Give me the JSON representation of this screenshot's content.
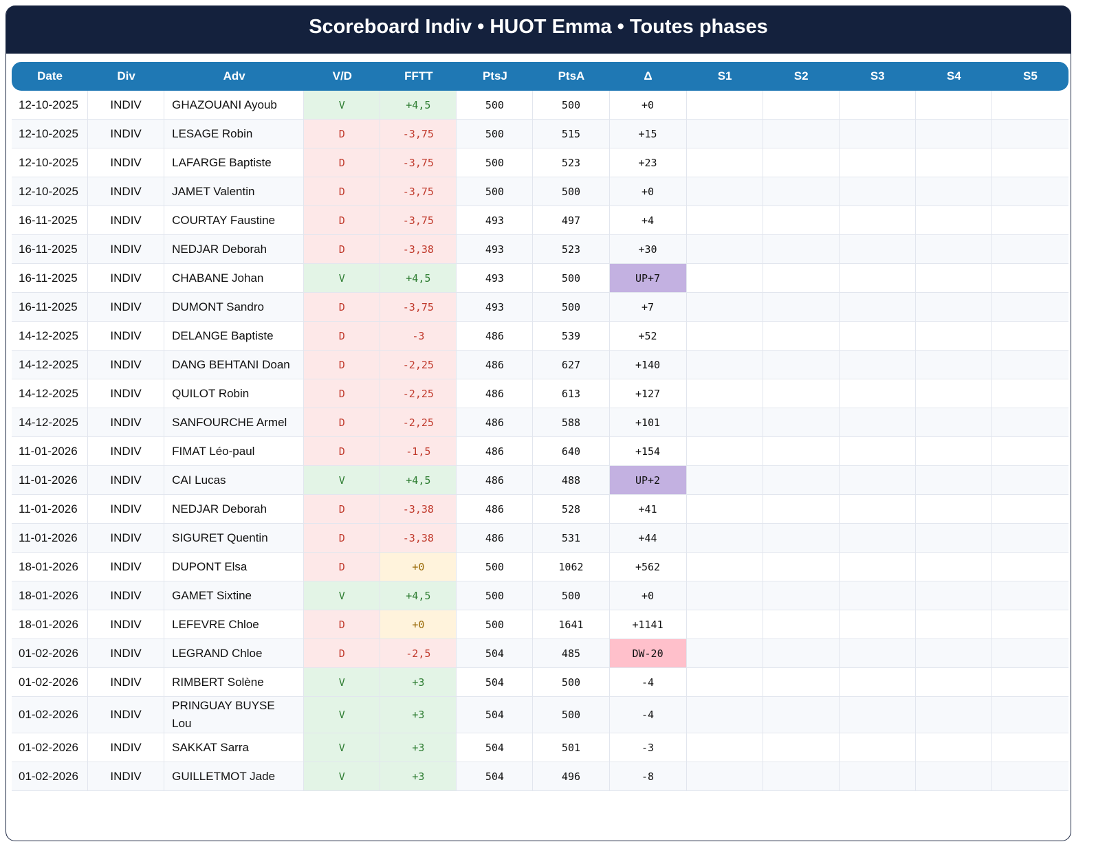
{
  "header": {
    "title": "Scoreboard Indiv • HUOT Emma • Toutes phases"
  },
  "table": {
    "columns": [
      "Date",
      "Div",
      "Adv",
      "V/D",
      "FFTT",
      "PtsJ",
      "PtsA",
      "Δ",
      "S1",
      "S2",
      "S3",
      "S4",
      "S5"
    ],
    "rows": [
      [
        "12-10-2025",
        "INDIV",
        "GHAZOUANI Ayoub",
        "V",
        "+4,5",
        "500",
        "500",
        "+0"
      ],
      [
        "12-10-2025",
        "INDIV",
        "LESAGE Robin",
        "D",
        "-3,75",
        "500",
        "515",
        "+15"
      ],
      [
        "12-10-2025",
        "INDIV",
        "LAFARGE Baptiste",
        "D",
        "-3,75",
        "500",
        "523",
        "+23"
      ],
      [
        "12-10-2025",
        "INDIV",
        "JAMET Valentin",
        "D",
        "-3,75",
        "500",
        "500",
        "+0"
      ],
      [
        "16-11-2025",
        "INDIV",
        "COURTAY Faustine",
        "D",
        "-3,75",
        "493",
        "497",
        "+4"
      ],
      [
        "16-11-2025",
        "INDIV",
        "NEDJAR Deborah",
        "D",
        "-3,38",
        "493",
        "523",
        "+30"
      ],
      [
        "16-11-2025",
        "INDIV",
        "CHABANE Johan",
        "V",
        "+4,5",
        "493",
        "500",
        "UP+7"
      ],
      [
        "16-11-2025",
        "INDIV",
        "DUMONT Sandro",
        "D",
        "-3,75",
        "493",
        "500",
        "+7"
      ],
      [
        "14-12-2025",
        "INDIV",
        "DELANGE Baptiste",
        "D",
        "-3",
        "486",
        "539",
        "+52"
      ],
      [
        "14-12-2025",
        "INDIV",
        "DANG BEHTANI Doan",
        "D",
        "-2,25",
        "486",
        "627",
        "+140"
      ],
      [
        "14-12-2025",
        "INDIV",
        "QUILOT Robin",
        "D",
        "-2,25",
        "486",
        "613",
        "+127"
      ],
      [
        "14-12-2025",
        "INDIV",
        "SANFOURCHE Armel",
        "D",
        "-2,25",
        "486",
        "588",
        "+101"
      ],
      [
        "11-01-2026",
        "INDIV",
        "FIMAT Léo-paul",
        "D",
        "-1,5",
        "486",
        "640",
        "+154"
      ],
      [
        "11-01-2026",
        "INDIV",
        "CAI Lucas",
        "V",
        "+4,5",
        "486",
        "488",
        "UP+2"
      ],
      [
        "11-01-2026",
        "INDIV",
        "NEDJAR Deborah",
        "D",
        "-3,38",
        "486",
        "528",
        "+41"
      ],
      [
        "11-01-2026",
        "INDIV",
        "SIGURET Quentin",
        "D",
        "-3,38",
        "486",
        "531",
        "+44"
      ],
      [
        "18-01-2026",
        "INDIV",
        "DUPONT Elsa",
        "D",
        "+0",
        "500",
        "1062",
        "+562"
      ],
      [
        "18-01-2026",
        "INDIV",
        "GAMET Sixtine",
        "V",
        "+4,5",
        "500",
        "500",
        "+0"
      ],
      [
        "18-01-2026",
        "INDIV",
        "LEFEVRE Chloe",
        "D",
        "+0",
        "500",
        "1641",
        "+1141"
      ],
      [
        "01-02-2026",
        "INDIV",
        "LEGRAND Chloe",
        "D",
        "-2,5",
        "504",
        "485",
        "DW-20"
      ],
      [
        "01-02-2026",
        "INDIV",
        "RIMBERT Solène",
        "V",
        "+3",
        "504",
        "500",
        "-4"
      ],
      [
        "01-02-2026",
        "INDIV",
        "PRINGUAY BUYSE Lou",
        "V",
        "+3",
        "504",
        "500",
        "-4"
      ],
      [
        "01-02-2026",
        "INDIV",
        "SAKKAT Sarra",
        "V",
        "+3",
        "504",
        "501",
        "-3"
      ],
      [
        "01-02-2026",
        "INDIV",
        "GUILLETMOT Jade",
        "V",
        "+3",
        "504",
        "496",
        "-8"
      ]
    ]
  }
}
